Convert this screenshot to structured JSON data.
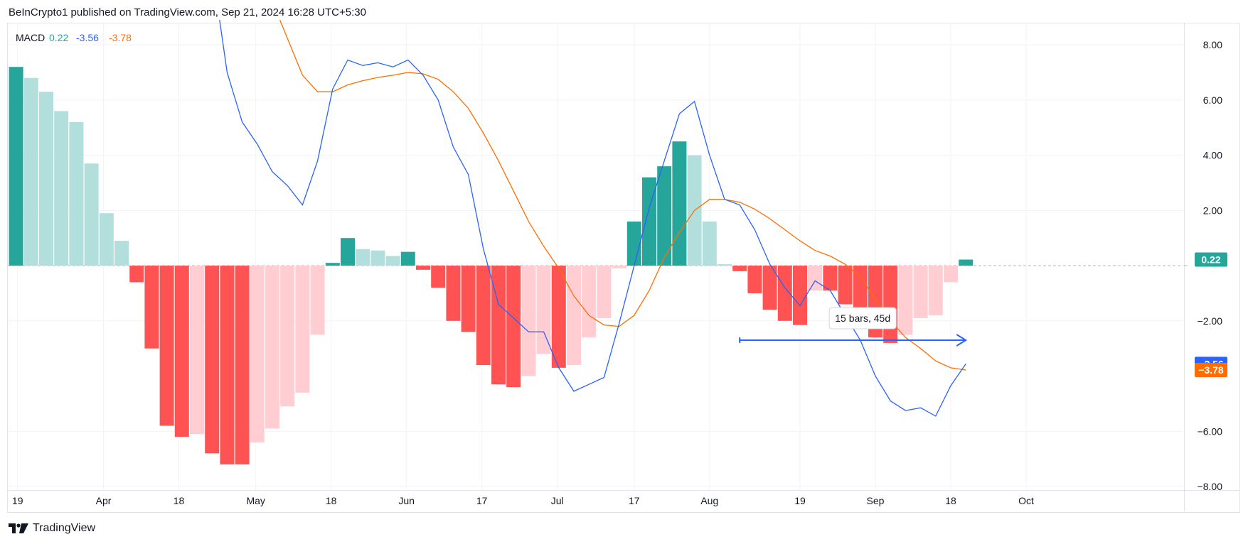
{
  "header": {
    "published_text": "BeInCrypto1 published on TradingView.com, Sep 21, 2024 16:28 UTC+5:30"
  },
  "footer": {
    "brand": "TradingView"
  },
  "colors": {
    "macd_line": "#2962ff",
    "signal_line": "#ff6d00",
    "hist_pos_strong": "#26a69a",
    "hist_pos_weak": "#b2dfdb",
    "hist_neg_strong": "#ff5252",
    "hist_neg_weak": "#ffcdd2",
    "grid": "#f0f3fa",
    "border": "#e0e3eb"
  },
  "chart_data": {
    "type": "bar",
    "legend": {
      "name": "MACD",
      "hist": "0.22",
      "macd": "-3.56",
      "signal": "-3.78",
      "placement": "top-left"
    },
    "ylim": [
      -8.9,
      8.8
    ],
    "yticks": [
      "8.00",
      "6.00",
      "4.00",
      "2.00",
      "-2.00",
      "-6.00",
      "-8.00"
    ],
    "ytick_values": [
      8,
      6,
      4,
      2,
      -2,
      -6,
      -8
    ],
    "xticks": [
      {
        "label": "19",
        "bar": 0.6
      },
      {
        "label": "Apr",
        "bar": 6.3
      },
      {
        "label": "18",
        "bar": 11.3
      },
      {
        "label": "May",
        "bar": 16.4
      },
      {
        "label": "18",
        "bar": 21.4
      },
      {
        "label": "Jun",
        "bar": 26.4
      },
      {
        "label": "17",
        "bar": 31.4
      },
      {
        "label": "Jul",
        "bar": 36.4
      },
      {
        "label": "17",
        "bar": 41.5
      },
      {
        "label": "Aug",
        "bar": 46.5
      },
      {
        "label": "19",
        "bar": 52.5
      },
      {
        "label": "Sep",
        "bar": 57.5
      },
      {
        "label": "18",
        "bar": 62.5
      },
      {
        "label": "Oct",
        "bar": 67.5
      }
    ],
    "histogram": [
      7.2,
      6.8,
      6.3,
      5.6,
      5.2,
      3.7,
      1.9,
      0.9,
      -0.6,
      -3.0,
      -5.8,
      -6.2,
      -6.1,
      -6.8,
      -7.2,
      -7.2,
      -6.4,
      -5.9,
      -5.1,
      -4.6,
      -2.5,
      0.1,
      1.0,
      0.6,
      0.55,
      0.35,
      0.5,
      -0.15,
      -0.8,
      -2.0,
      -2.4,
      -3.6,
      -4.3,
      -4.4,
      -4.0,
      -3.2,
      -3.7,
      -3.6,
      -2.6,
      -1.9,
      -0.1,
      1.6,
      3.2,
      3.6,
      4.5,
      4.0,
      1.6,
      0.05,
      -0.2,
      -1.0,
      -1.6,
      -2.0,
      -2.15,
      -0.9,
      -0.9,
      -1.4,
      -1.6,
      -2.6,
      -2.8,
      -2.5,
      -1.9,
      -1.8,
      -0.6,
      0.22
    ],
    "macd_line": [
      [
        13.5,
        8.9
      ],
      [
        14,
        7.0
      ],
      [
        15,
        5.2
      ],
      [
        16,
        4.4
      ],
      [
        17,
        3.4
      ],
      [
        18,
        2.9
      ],
      [
        19,
        2.2
      ],
      [
        20,
        3.8
      ],
      [
        21,
        6.4
      ],
      [
        22,
        7.45
      ],
      [
        23,
        7.25
      ],
      [
        24,
        7.35
      ],
      [
        25,
        7.2
      ],
      [
        26,
        7.45
      ],
      [
        27,
        6.9
      ],
      [
        28,
        6.0
      ],
      [
        29,
        4.3
      ],
      [
        30,
        3.3
      ],
      [
        31,
        0.6
      ],
      [
        32,
        -1.4
      ],
      [
        33,
        -1.9
      ],
      [
        34,
        -2.4
      ],
      [
        35,
        -2.4
      ],
      [
        36,
        -3.7
      ],
      [
        37,
        -4.55
      ],
      [
        38,
        -4.3
      ],
      [
        39,
        -4.05
      ],
      [
        40,
        -2.1
      ],
      [
        41,
        0.0
      ],
      [
        42,
        2.1
      ],
      [
        43,
        3.8
      ],
      [
        44,
        5.5
      ],
      [
        45,
        5.95
      ],
      [
        46,
        4.0
      ],
      [
        47,
        2.4
      ],
      [
        48,
        2.2
      ],
      [
        49,
        1.3
      ],
      [
        50,
        0.05
      ],
      [
        51,
        -0.8
      ],
      [
        52,
        -1.45
      ],
      [
        53,
        -0.55
      ],
      [
        54,
        -0.9
      ],
      [
        55,
        -1.8
      ],
      [
        56,
        -2.7
      ],
      [
        57,
        -4.0
      ],
      [
        58,
        -4.9
      ],
      [
        59,
        -5.25
      ],
      [
        60,
        -5.15
      ],
      [
        61,
        -5.45
      ],
      [
        62,
        -4.35
      ],
      [
        63,
        -3.56
      ]
    ],
    "signal_line": [
      [
        17.5,
        8.9
      ],
      [
        19,
        6.9
      ],
      [
        20,
        6.3
      ],
      [
        21,
        6.3
      ],
      [
        22,
        6.55
      ],
      [
        23,
        6.7
      ],
      [
        24,
        6.82
      ],
      [
        25,
        6.9
      ],
      [
        26,
        7.0
      ],
      [
        27,
        6.95
      ],
      [
        28,
        6.75
      ],
      [
        29,
        6.3
      ],
      [
        30,
        5.7
      ],
      [
        31,
        4.8
      ],
      [
        32,
        3.8
      ],
      [
        33,
        2.7
      ],
      [
        34,
        1.6
      ],
      [
        35,
        0.7
      ],
      [
        36,
        -0.1
      ],
      [
        37,
        -1.1
      ],
      [
        38,
        -1.8
      ],
      [
        39,
        -2.15
      ],
      [
        40,
        -2.2
      ],
      [
        41,
        -1.8
      ],
      [
        42,
        -0.9
      ],
      [
        43,
        0.3
      ],
      [
        44,
        1.2
      ],
      [
        45,
        2.0
      ],
      [
        46,
        2.4
      ],
      [
        47,
        2.4
      ],
      [
        48,
        2.3
      ],
      [
        49,
        2.05
      ],
      [
        50,
        1.7
      ],
      [
        51,
        1.3
      ],
      [
        52,
        0.9
      ],
      [
        53,
        0.55
      ],
      [
        54,
        0.35
      ],
      [
        55,
        0.05
      ],
      [
        56,
        -0.4
      ],
      [
        57,
        -1.2
      ],
      [
        58,
        -2.0
      ],
      [
        59,
        -2.6
      ],
      [
        60,
        -3.0
      ],
      [
        61,
        -3.45
      ],
      [
        62,
        -3.7
      ],
      [
        63,
        -3.78
      ]
    ],
    "price_tags": [
      {
        "label": "0.22",
        "value": 0.22,
        "color": "#26a69a"
      },
      {
        "label": "−3.56",
        "value": -3.56,
        "color": "#2962ff"
      },
      {
        "label": "−3.78",
        "value": -3.78,
        "color": "#ff6d00"
      }
    ],
    "annotation": {
      "text": "15 bars, 45d",
      "start_bar": 48.5,
      "end_bar": 63.5,
      "value": -2.7,
      "color": "#2962ff"
    }
  }
}
